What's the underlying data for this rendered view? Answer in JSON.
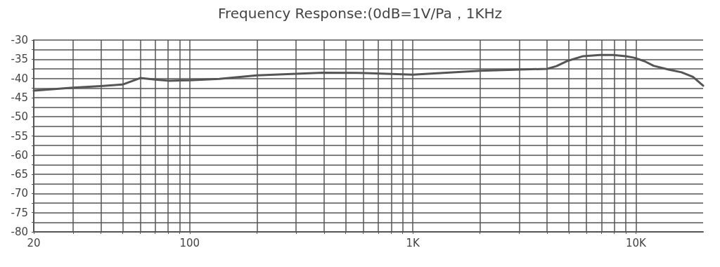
{
  "chart_data": {
    "type": "line",
    "title": "Frequency Response:(0dB=1V/Pa，1KHz",
    "x": [
      20,
      30,
      40,
      50,
      60,
      70,
      80,
      100,
      136,
      200,
      300,
      394,
      610,
      1000,
      2000,
      3000,
      4000,
      4400,
      4900,
      5800,
      6900,
      7900,
      9000,
      9800,
      10900,
      12000,
      14000,
      16000,
      18000,
      20000
    ],
    "series": [
      {
        "color": "#555555",
        "values": [
          -43.2,
          -42.4,
          -42.0,
          -41.6,
          -39.9,
          -40.3,
          -40.6,
          -40.5,
          -40.1,
          -39.2,
          -38.8,
          -38.5,
          -38.6,
          -39.0,
          -38.0,
          -37.7,
          -37.5,
          -36.8,
          -35.5,
          -34.2,
          -33.9,
          -33.9,
          -34.2,
          -34.6,
          -35.5,
          -36.7,
          -37.7,
          -38.4,
          -39.6,
          -41.9
        ]
      }
    ],
    "log": "x",
    "xlim": [
      20,
      20000
    ],
    "xticks": [
      20,
      {
        "value": 30,
        "label": null
      },
      {
        "value": 40,
        "label": null
      },
      {
        "value": 50,
        "label": null
      },
      {
        "value": 60,
        "label": null
      },
      {
        "value": 70,
        "label": null
      },
      {
        "value": 80,
        "label": null
      },
      {
        "value": 90,
        "label": null
      },
      100,
      {
        "value": 200,
        "label": null
      },
      {
        "value": 300,
        "label": null
      },
      {
        "value": 400,
        "label": null
      },
      {
        "value": 500,
        "label": null
      },
      {
        "value": 600,
        "label": null
      },
      {
        "value": 700,
        "label": null
      },
      {
        "value": 800,
        "label": null
      },
      {
        "value": 900,
        "label": null
      },
      {
        "value": 1000,
        "label": "1K"
      },
      {
        "value": 2000,
        "label": null
      },
      {
        "value": 3000,
        "label": null
      },
      {
        "value": 4000,
        "label": null
      },
      {
        "value": 5000,
        "label": null
      },
      {
        "value": 6000,
        "label": null
      },
      {
        "value": 7000,
        "label": null
      },
      {
        "value": 8000,
        "label": null
      },
      {
        "value": 9000,
        "label": null
      },
      {
        "value": 10000,
        "label": "10K"
      }
    ],
    "ylim": [
      -80,
      -30
    ],
    "yticks": [
      -80,
      {
        "value": -77.5,
        "label": null
      },
      -75,
      {
        "value": -72.5,
        "label": null
      },
      -70,
      {
        "value": -67.5,
        "label": null
      },
      -65,
      {
        "value": -62.5,
        "label": null
      },
      -60,
      {
        "value": -57.5,
        "label": null
      },
      -55,
      {
        "value": -52.5,
        "label": null
      },
      -50,
      {
        "value": -47.5,
        "label": null
      },
      -45,
      {
        "value": -42.5,
        "label": null
      },
      -40,
      {
        "value": -37.5,
        "label": null
      },
      -35,
      {
        "value": -32.5,
        "label": null
      },
      -30
    ],
    "grid": true,
    "marker": "none",
    "line_style": "solid"
  }
}
